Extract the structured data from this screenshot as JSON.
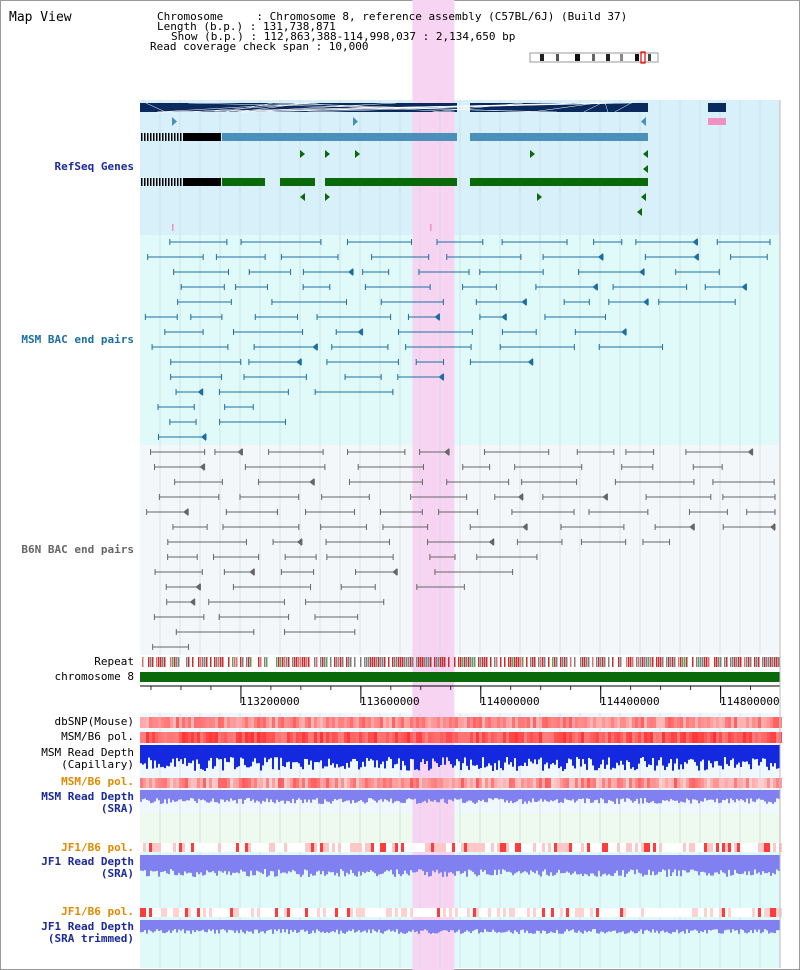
{
  "header": {
    "view_title": "Map View",
    "chromosome_line": "Chromosome     : Chromosome 8, reference assembly (C57BL/6J) (Build 37)",
    "length_line": "Length (b.p.) : 131,738,871",
    "show_line": "Show (b.p.) : 112,863,388-114,998,037 : 2,134,650 bp",
    "span_line": "Read coverage check span : 10,000"
  },
  "tracks": {
    "refseq": "RefSeq Genes",
    "msm_bac": "MSM BAC end pairs",
    "b6n_bac": "B6N BAC end pairs",
    "repeat": "Repeat",
    "chromosome": "chromosome 8",
    "dbsnp": "dbSNP(Mouse)",
    "msm_b6_pol_1": "MSM/B6 pol.",
    "msm_depth_cap_1": "MSM Read Depth",
    "msm_depth_cap_2": "(Capillary)",
    "msm_b6_pol_2": "MSM/B6 pol.",
    "msm_depth_sra_1": "MSM Read Depth",
    "msm_depth_sra_2": "(SRA)",
    "jf1_b6_pol_1": "JF1/B6 pol.",
    "jf1_depth_sra_1": "JF1 Read Depth",
    "jf1_depth_sra_2": "(SRA)",
    "jf1_b6_pol_2": "JF1/B6 pol.",
    "jf1_depth_trim_1": "JF1 Read Depth",
    "jf1_depth_trim_2": "(SRA trimmed)"
  },
  "axis": {
    "ticks": [
      "113200000",
      "113600000",
      "114000000",
      "114400000",
      "114800000"
    ],
    "tick_values": [
      113200000,
      113600000,
      114000000,
      114400000,
      114800000
    ],
    "start": 112863388,
    "end": 114998037
  },
  "highlight": {
    "start": 113772000,
    "end": 113912000
  },
  "colors": {
    "refseq_bg": "#d8f0fa",
    "msm_bg": "#e0fafa",
    "b6n_bg": "#f4f7fa",
    "highlight": "#f7d4f2",
    "gene_dark": "#0a2a5e",
    "gene_mid": "#4a90b8",
    "gene_green": "#0a6a0a",
    "bac_msm": "#1c6fa0",
    "bac_b6n": "#666666",
    "chrom_bar": "#0a6a0a",
    "depth_blue": "#1428e0",
    "depth_violet": "#8080f0",
    "pol_red": "#e84040"
  }
}
